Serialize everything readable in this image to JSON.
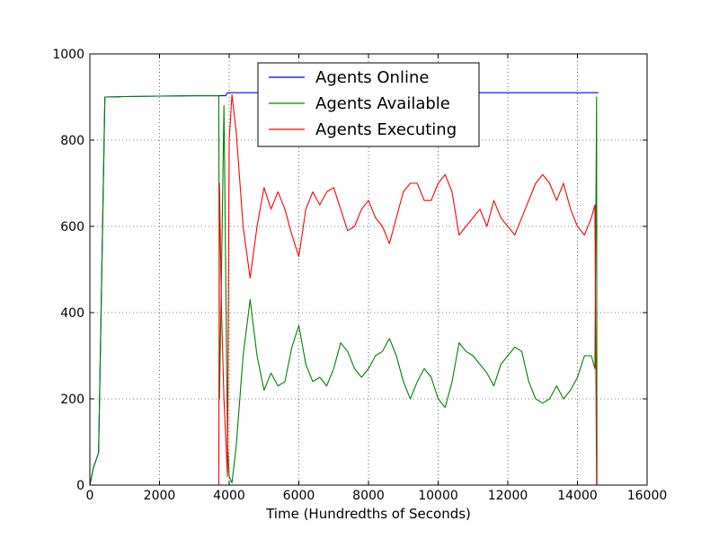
{
  "chart_data": {
    "type": "line",
    "title": "",
    "xlabel": "Time (Hundredths of Seconds)",
    "ylabel": "",
    "xlim": [
      0,
      16000
    ],
    "ylim": [
      0,
      1000
    ],
    "xticks": [
      0,
      2000,
      4000,
      6000,
      8000,
      10000,
      12000,
      14000,
      16000
    ],
    "yticks": [
      0,
      200,
      400,
      600,
      800,
      1000
    ],
    "grid": true,
    "legend_position": "top-center",
    "series": [
      {
        "name": "Agents Online",
        "color": "#0000ff",
        "x": [
          0,
          100,
          250,
          430,
          1000,
          2000,
          3000,
          3700,
          3900,
          3950,
          4000,
          6000,
          8000,
          10000,
          12000,
          14000,
          14550,
          14560,
          14600
        ],
        "y": [
          0,
          40,
          75,
          900,
          901,
          902,
          903,
          903,
          903,
          910,
          910,
          910,
          910,
          910,
          910,
          910,
          910,
          910,
          910
        ]
      },
      {
        "name": "Agents Available",
        "color": "#008000",
        "x": [
          0,
          100,
          250,
          430,
          1000,
          2000,
          3000,
          3700,
          3720,
          3780,
          3850,
          3950,
          4000,
          4080,
          4200,
          4400,
          4600,
          4800,
          5000,
          5200,
          5400,
          5600,
          5800,
          6000,
          6200,
          6400,
          6600,
          6800,
          7000,
          7200,
          7400,
          7600,
          7800,
          8000,
          8200,
          8400,
          8600,
          8800,
          9000,
          9200,
          9400,
          9600,
          9800,
          10000,
          10200,
          10400,
          10600,
          10800,
          11000,
          11200,
          11400,
          11600,
          11800,
          12000,
          12200,
          12400,
          12600,
          12800,
          13000,
          13200,
          13400,
          13600,
          13800,
          14000,
          14200,
          14400,
          14500,
          14550,
          14560
        ],
        "y": [
          0,
          40,
          75,
          900,
          901,
          902,
          903,
          903,
          200,
          500,
          880,
          100,
          20,
          5,
          90,
          300,
          430,
          300,
          220,
          260,
          230,
          240,
          320,
          370,
          280,
          240,
          250,
          230,
          270,
          330,
          310,
          270,
          250,
          270,
          300,
          310,
          340,
          300,
          240,
          200,
          240,
          270,
          250,
          200,
          180,
          240,
          330,
          310,
          300,
          280,
          260,
          230,
          280,
          300,
          320,
          310,
          240,
          200,
          190,
          200,
          230,
          200,
          220,
          250,
          300,
          300,
          270,
          900,
          0
        ]
      },
      {
        "name": "Agents Executing",
        "color": "#ff0000",
        "x": [
          0,
          1000,
          2000,
          3000,
          3700,
          3720,
          3780,
          3850,
          3950,
          4000,
          4080,
          4200,
          4400,
          4600,
          4800,
          5000,
          5200,
          5400,
          5600,
          5800,
          6000,
          6200,
          6400,
          6600,
          6800,
          7000,
          7200,
          7400,
          7600,
          7800,
          8000,
          8200,
          8400,
          8600,
          8800,
          9000,
          9200,
          9400,
          9600,
          9800,
          10000,
          10200,
          10400,
          10600,
          10800,
          11000,
          11200,
          11400,
          11600,
          11800,
          12000,
          12200,
          12400,
          12600,
          12800,
          13000,
          13200,
          13400,
          13600,
          13800,
          14000,
          14200,
          14400,
          14500,
          14550,
          14560
        ],
        "y": [
          0,
          0,
          0,
          0,
          0,
          700,
          400,
          200,
          20,
          800,
          905,
          820,
          600,
          480,
          600,
          690,
          640,
          680,
          640,
          580,
          530,
          640,
          680,
          650,
          680,
          690,
          640,
          590,
          600,
          640,
          660,
          620,
          600,
          560,
          620,
          680,
          700,
          700,
          660,
          660,
          700,
          720,
          680,
          580,
          600,
          620,
          640,
          600,
          660,
          620,
          600,
          580,
          620,
          660,
          700,
          720,
          700,
          660,
          700,
          640,
          600,
          580,
          620,
          650,
          0,
          0
        ]
      }
    ]
  }
}
